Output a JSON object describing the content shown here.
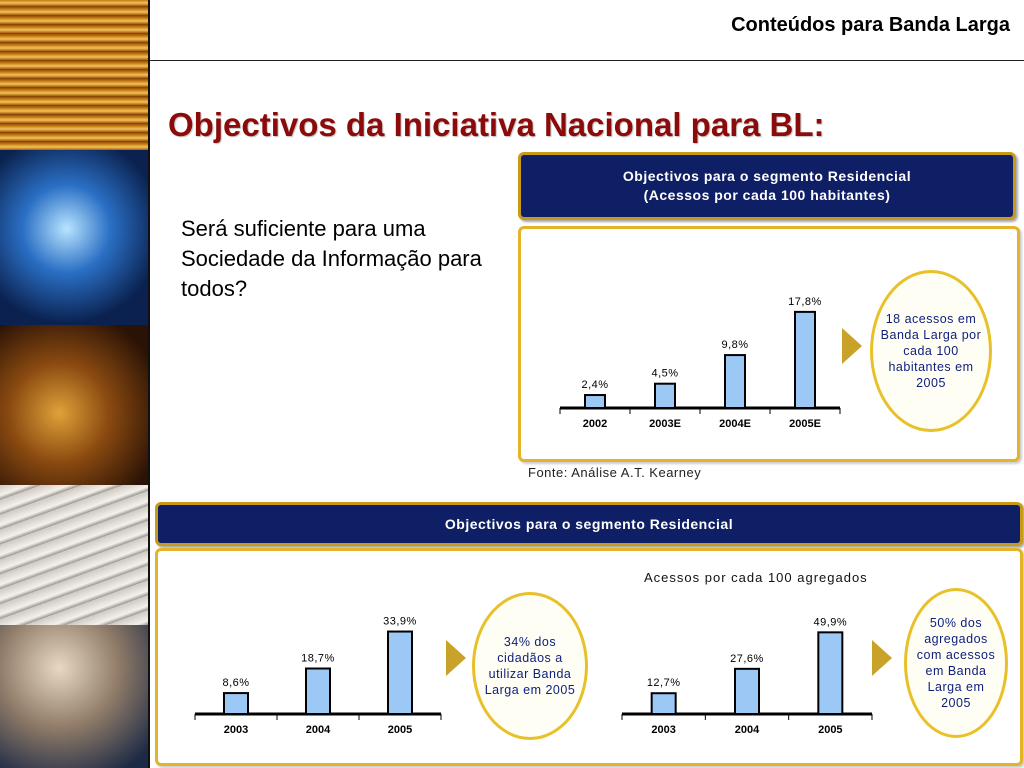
{
  "header": {
    "title": "Conteúdos para Banda Larga"
  },
  "slide": {
    "title": "Objectivos da Iniciativa Nacional para BL:",
    "question": "Será suficiente para uma Sociedade da Informação para todos?"
  },
  "top_section": {
    "banner_line1": "Objectivos para o segmento Residencial",
    "banner_line2": "(Acessos por cada 100 habitantes)",
    "goal_text": "18 acessos em Banda Larga por cada 100 habitantes em 2005",
    "source": "Fonte: Análise A.T. Kearney"
  },
  "bottom_section": {
    "banner": "Objectivos para o segmento Residencial",
    "left_goal_text": "34% dos cidadãos a utilizar Banda Larga em 2005",
    "right_chart_title": "Acessos por cada 100 agregados",
    "right_goal_text": "50% dos agregados com acessos em Banda Larga em 2005"
  },
  "colors": {
    "bar": "#9cc8f5",
    "banner_bg": "#0f1f66",
    "panel_border": "#e3b32c",
    "title": "#8b0a0a"
  },
  "chart_data": [
    {
      "type": "bar",
      "categories": [
        "2002",
        "2003E",
        "2004E",
        "2005E"
      ],
      "values": [
        2.4,
        4.5,
        9.8,
        17.8
      ],
      "value_labels": [
        "2,4%",
        "4,5%",
        "9,8%",
        "17,8%"
      ],
      "ylim": [
        0,
        20
      ]
    },
    {
      "type": "bar",
      "categories": [
        "2003",
        "2004",
        "2005"
      ],
      "values": [
        8.6,
        18.7,
        33.9
      ],
      "value_labels": [
        "8,6%",
        "18,7%",
        "33,9%"
      ],
      "ylim": [
        0,
        37
      ]
    },
    {
      "type": "bar",
      "title": "Acessos por cada 100 agregados",
      "categories": [
        "2003",
        "2004",
        "2005"
      ],
      "values": [
        12.7,
        27.6,
        49.9
      ],
      "value_labels": [
        "12,7%",
        "27,6%",
        "49,9%"
      ],
      "ylim": [
        0,
        55
      ]
    }
  ]
}
